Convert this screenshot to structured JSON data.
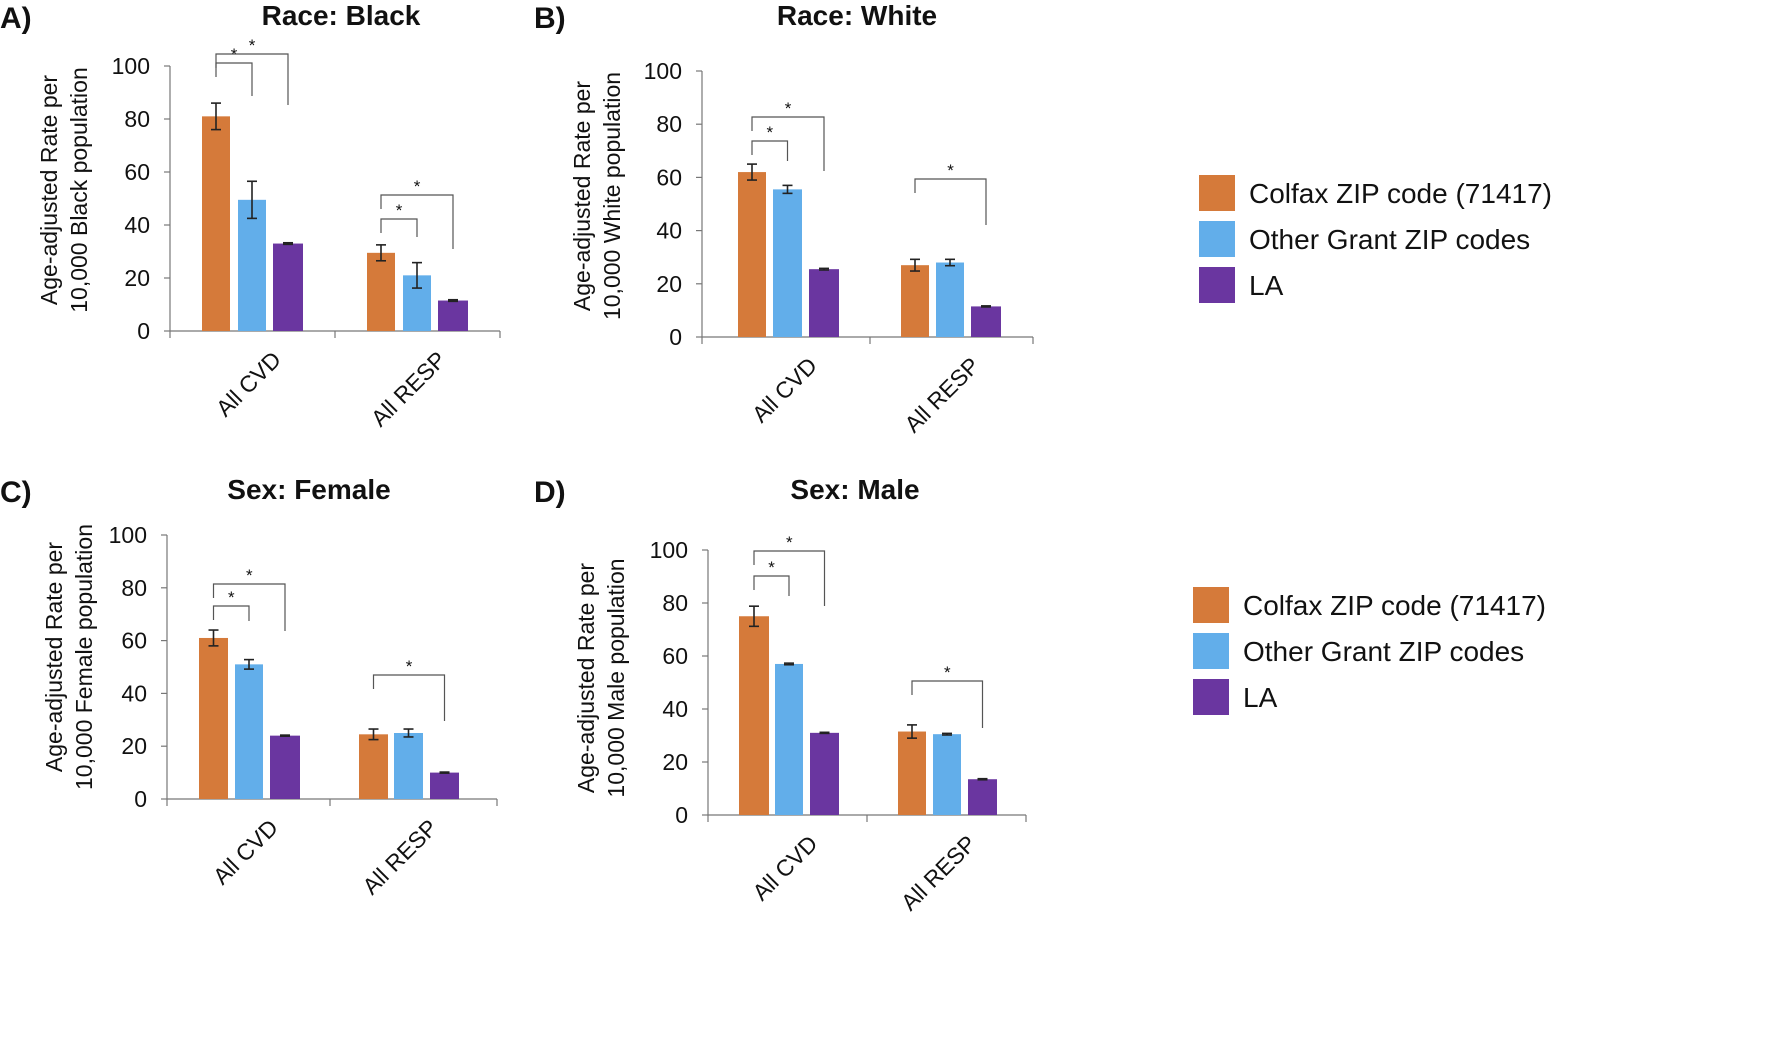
{
  "colors": {
    "colfax": "#d57a3a",
    "grant": "#62aeea",
    "la": "#6a36a0"
  },
  "legend": [
    {
      "label": "Colfax ZIP code (71417)",
      "color": "#d57a3a"
    },
    {
      "label": "Other Grant ZIP codes",
      "color": "#62aeea"
    },
    {
      "label": "LA",
      "color": "#6a36a0"
    }
  ],
  "chart_data": [
    {
      "panel": "A)",
      "type": "bar",
      "title": "Race: Black",
      "ylabel": [
        "Age-adjusted Rate per",
        "10,000 Black population"
      ],
      "ylim": [
        0,
        100
      ],
      "yticks": [
        0,
        20,
        40,
        60,
        80,
        100
      ],
      "categories": [
        "All CVD",
        "All RESP"
      ],
      "series": [
        {
          "name": "Colfax ZIP code (71417)",
          "values": [
            81,
            29.5
          ],
          "errors": [
            5,
            3
          ]
        },
        {
          "name": "Other Grant ZIP codes",
          "values": [
            49.5,
            21
          ],
          "errors": [
            7,
            4.8
          ]
        },
        {
          "name": "LA",
          "values": [
            33,
            11.5
          ],
          "errors": [
            0.3,
            0.3
          ]
        }
      ],
      "significance": [
        {
          "category": "All CVD",
          "from": 0,
          "to": 1,
          "label": "*"
        },
        {
          "category": "All CVD",
          "from": 0,
          "to": 2,
          "label": "*"
        },
        {
          "category": "All RESP",
          "from": 0,
          "to": 1,
          "label": "*"
        },
        {
          "category": "All RESP",
          "from": 0,
          "to": 2,
          "label": "*"
        }
      ]
    },
    {
      "panel": "B)",
      "type": "bar",
      "title": "Race: White",
      "ylabel": [
        "Age-adjusted Rate per",
        "10,000 White population"
      ],
      "ylim": [
        0,
        100
      ],
      "yticks": [
        0,
        20,
        40,
        60,
        80,
        100
      ],
      "categories": [
        "All CVD",
        "All RESP"
      ],
      "series": [
        {
          "name": "Colfax ZIP code (71417)",
          "values": [
            62,
            27
          ],
          "errors": [
            3,
            2.2
          ]
        },
        {
          "name": "Other Grant ZIP codes",
          "values": [
            55.5,
            28
          ],
          "errors": [
            1.5,
            1.2
          ]
        },
        {
          "name": "LA",
          "values": [
            25.5,
            11.5
          ],
          "errors": [
            0.3,
            0.2
          ]
        }
      ],
      "significance": [
        {
          "category": "All CVD",
          "from": 0,
          "to": 1,
          "label": "*"
        },
        {
          "category": "All CVD",
          "from": 0,
          "to": 2,
          "label": "*"
        },
        {
          "category": "All RESP",
          "from": 0,
          "to": 2,
          "label": "*"
        }
      ]
    },
    {
      "panel": "C)",
      "type": "bar",
      "title": "Sex: Female",
      "ylabel": [
        "Age-adjusted Rate per",
        "10,000 Female population"
      ],
      "ylim": [
        0,
        100
      ],
      "yticks": [
        0,
        20,
        40,
        60,
        80,
        100
      ],
      "categories": [
        "All CVD",
        "All RESP"
      ],
      "series": [
        {
          "name": "Colfax ZIP code (71417)",
          "values": [
            61,
            24.5
          ],
          "errors": [
            3,
            2
          ]
        },
        {
          "name": "Other Grant ZIP codes",
          "values": [
            51,
            25
          ],
          "errors": [
            1.8,
            1.5
          ]
        },
        {
          "name": "LA",
          "values": [
            24,
            10
          ],
          "errors": [
            0.2,
            0.2
          ]
        }
      ],
      "significance": [
        {
          "category": "All CVD",
          "from": 0,
          "to": 1,
          "label": "*"
        },
        {
          "category": "All CVD",
          "from": 0,
          "to": 2,
          "label": "*"
        },
        {
          "category": "All RESP",
          "from": 0,
          "to": 2,
          "label": "*"
        }
      ]
    },
    {
      "panel": "D)",
      "type": "bar",
      "title": "Sex: Male",
      "ylabel": [
        "Age-adjusted Rate per",
        "10,000 Male population"
      ],
      "ylim": [
        0,
        100
      ],
      "yticks": [
        0,
        20,
        40,
        60,
        80,
        100
      ],
      "categories": [
        "All CVD",
        "All RESP"
      ],
      "series": [
        {
          "name": "Colfax ZIP code (71417)",
          "values": [
            75,
            31.5
          ],
          "errors": [
            3.8,
            2.5
          ]
        },
        {
          "name": "Other Grant ZIP codes",
          "values": [
            57,
            30.5
          ],
          "errors": [
            0.3,
            0.3
          ]
        },
        {
          "name": "LA",
          "values": [
            31,
            13.5
          ],
          "errors": [
            0.2,
            0.2
          ]
        }
      ],
      "significance": [
        {
          "category": "All CVD",
          "from": 0,
          "to": 1,
          "label": "*"
        },
        {
          "category": "All CVD",
          "from": 0,
          "to": 2,
          "label": "*"
        },
        {
          "category": "All RESP",
          "from": 0,
          "to": 2,
          "label": "*"
        }
      ]
    }
  ]
}
